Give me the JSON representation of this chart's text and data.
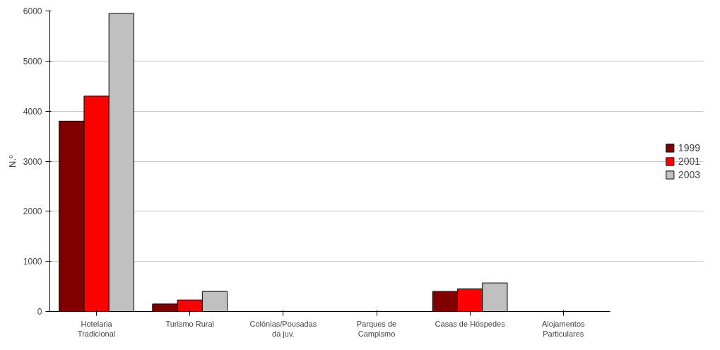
{
  "chart_data": {
    "type": "bar",
    "ylabel": "N.º",
    "categories": [
      "Hotelaria Tradicional",
      "Turismo Rural",
      "Colónias/Pousadas da juv.",
      "Parques de Campismo",
      "Casas de Hóspedes",
      "Alojamentos Particulares"
    ],
    "series": [
      {
        "name": "1999",
        "color": "#800000",
        "values": [
          3800,
          150,
          0,
          0,
          400,
          0
        ]
      },
      {
        "name": "2001",
        "color": "#ff0000",
        "values": [
          4300,
          230,
          0,
          0,
          450,
          0
        ]
      },
      {
        "name": "2003",
        "color": "#c0c0c0",
        "values": [
          5950,
          400,
          0,
          0,
          570,
          0
        ]
      }
    ],
    "ylim": [
      0,
      6000
    ],
    "yticks": [
      0,
      1000,
      2000,
      3000,
      4000,
      5000,
      6000
    ],
    "grid": "y",
    "legend": "right"
  }
}
